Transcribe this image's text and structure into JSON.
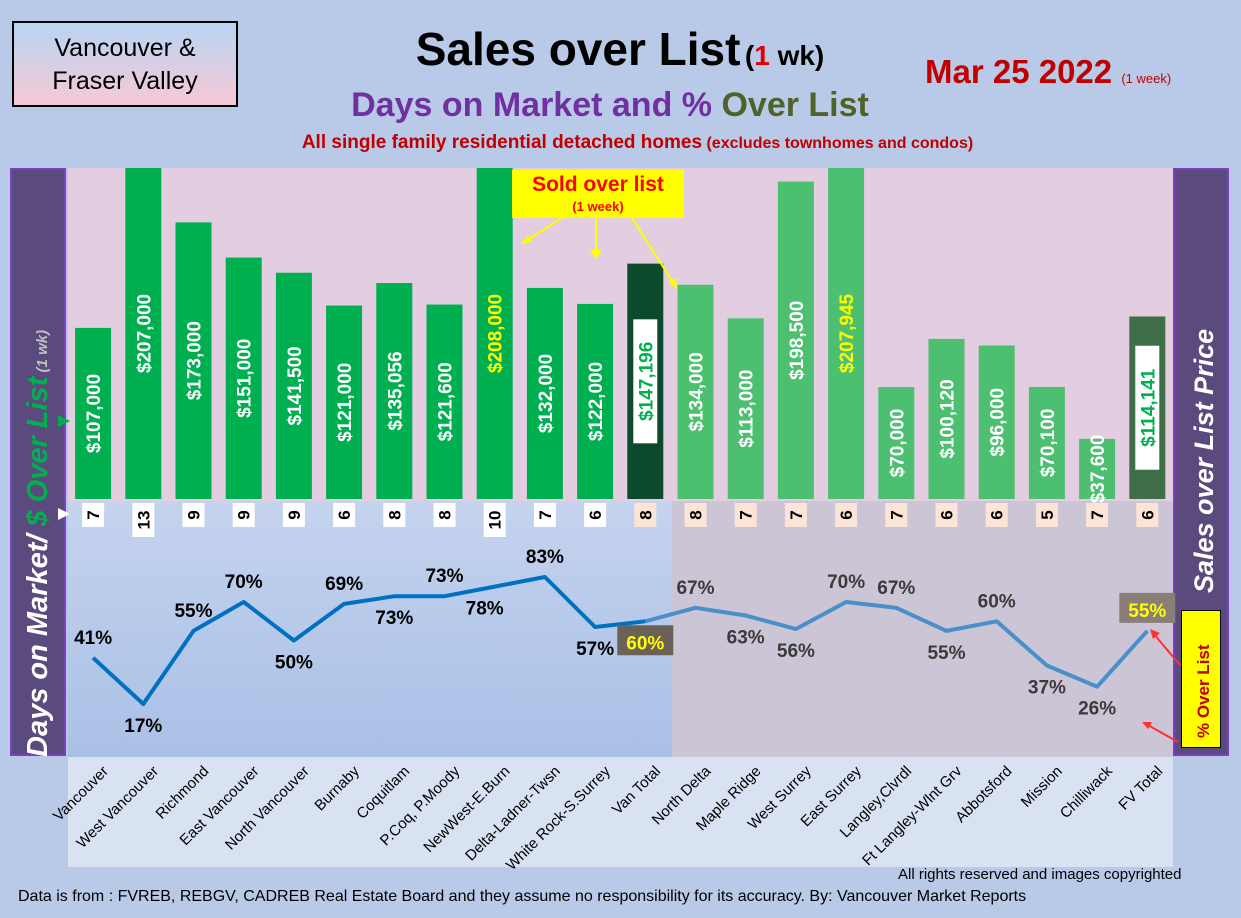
{
  "header": {
    "region": [
      "Vancouver &",
      "Fraser Valley"
    ],
    "title_main": "Sales over List",
    "title_paren_open": "(",
    "title_paren_num": "1",
    "title_paren_rest": " wk)",
    "subtitle_part1": "Days on Market and % ",
    "subtitle_part2": "Over List",
    "description_main": "All single family residential detached homes",
    "description_small": " (excludes townhomes and condos)",
    "date": "Mar 25  2022",
    "date_note": "(1 week)"
  },
  "left_axis": {
    "part1": "Days on Market/ ",
    "part2": "$ Over List",
    "part3": " (1 wk)"
  },
  "right_axis": {
    "title": "Sales over List Price"
  },
  "callout": {
    "title": "Sold over list",
    "sub": "(1 week)"
  },
  "pct_box_label": "% Over List",
  "colors": {
    "bar_van": "#00b050",
    "bar_fv": "#4cc070",
    "van_total": "#0b4a2b",
    "fv_total": "#3f6e47",
    "line_van": "#0070c0",
    "line_fv": "#4a8fc8",
    "yellow_text": "#ffff00",
    "days_box": "#fce4d6",
    "panel_pink": "#e4cce0",
    "panel_blue": "#b4c7e7",
    "panel_gray": "#c9c3d6"
  },
  "chart_data": {
    "type": "bar+line",
    "categories": [
      "Vancouver",
      "West Vancouver",
      "Richmond",
      "East Vancouver",
      "North Vancouver",
      "Burnaby",
      "Coquitlam",
      "P.Coq, P.Moody",
      "NewWest-E.Burn",
      "Delta-Ladner-Twsn",
      "White Rock-S.Surrey",
      "Van Total",
      "North Delta",
      "Maple Ridge",
      "West Surrey",
      "East Surrey",
      "Langley,Clvrdl",
      "Ft Langley-Wlnt Grv",
      "Abbotsford",
      "Mission",
      "Chilliwack",
      "FV Total"
    ],
    "series": [
      {
        "name": "$ Over List",
        "values": [
          107000,
          207000,
          173000,
          151000,
          141500,
          121000,
          135056,
          121600,
          208000,
          132000,
          122000,
          147196,
          134000,
          113000,
          198500,
          207945,
          70000,
          100120,
          96000,
          70100,
          37600,
          114141
        ],
        "labels": [
          "$107,000",
          "$207,000",
          "$173,000",
          "$151,000",
          "$141,500",
          "$121,000",
          "$135,056",
          "$121,600",
          "$208,000",
          "$132,000",
          "$122,000",
          "$147,196",
          "$134,000",
          "$113,000",
          "$198,500",
          "$207,945",
          "$70,000",
          "$100,120",
          "$96,000",
          "$70,100",
          "$37,600",
          "$114,141"
        ]
      },
      {
        "name": "Days on Market",
        "values": [
          7,
          13,
          9,
          9,
          9,
          6,
          8,
          8,
          10,
          7,
          6,
          8,
          8,
          7,
          7,
          6,
          7,
          6,
          6,
          5,
          7,
          6
        ]
      },
      {
        "name": "% Over List",
        "values": [
          41,
          17,
          55,
          70,
          50,
          69,
          73,
          73,
          78,
          83,
          57,
          60,
          67,
          63,
          56,
          70,
          67,
          55,
          60,
          37,
          26,
          55
        ],
        "labels": [
          "41%",
          "17%",
          "55%",
          "70%",
          "50%",
          "69%",
          "73%",
          "73%",
          "78%",
          "83%",
          "57%",
          "60%",
          "67%",
          "63%",
          "56%",
          "70%",
          "67%",
          "55%",
          "60%",
          "37%",
          "26%",
          "55%"
        ]
      }
    ]
  },
  "footer": {
    "rights": "All rights reserved and  images copyrighted",
    "source": "Data is from : FVREB, REBGV, CADREB Real Estate Board and they assume no responsibility for its accuracy. By: Vancouver Market Reports"
  }
}
